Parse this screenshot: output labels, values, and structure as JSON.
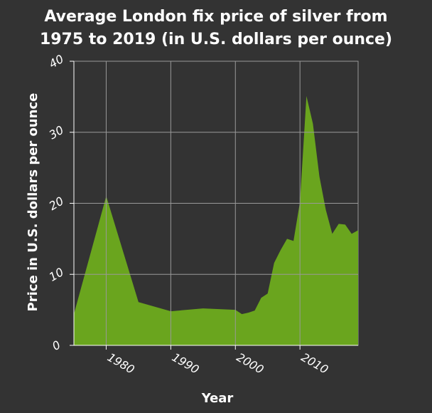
{
  "chart_data": {
    "type": "area",
    "title_lines": [
      "Average London fix price of silver from",
      "1975 to 2019 (in U.S. dollars per ounce)"
    ],
    "xlabel": "Year",
    "ylabel": "Price in U.S. dollars per ounce",
    "xlim": [
      1975,
      2019
    ],
    "ylim": [
      0,
      40
    ],
    "x_ticks": [
      1980,
      1990,
      2000,
      2010
    ],
    "y_ticks": [
      0,
      10,
      20,
      30,
      40
    ],
    "grid": true,
    "fill_color": "#6aa51e",
    "background_color": "#333333",
    "grid_color": "#999999",
    "series": [
      {
        "x": [
          1975,
          1980,
          1985,
          1990,
          1995,
          2000,
          2001,
          2002,
          2003,
          2004,
          2005,
          2006,
          2007,
          2008,
          2009,
          2010,
          2011,
          2012,
          2013,
          2014,
          2015,
          2016,
          2017,
          2018,
          2019
        ],
        "values": [
          4.4,
          21.0,
          6.1,
          4.8,
          5.2,
          5.0,
          4.4,
          4.6,
          4.9,
          6.7,
          7.3,
          11.6,
          13.4,
          15.0,
          14.7,
          20.2,
          35.1,
          31.2,
          23.8,
          19.1,
          15.7,
          17.1,
          17.0,
          15.7,
          16.2
        ]
      }
    ]
  }
}
